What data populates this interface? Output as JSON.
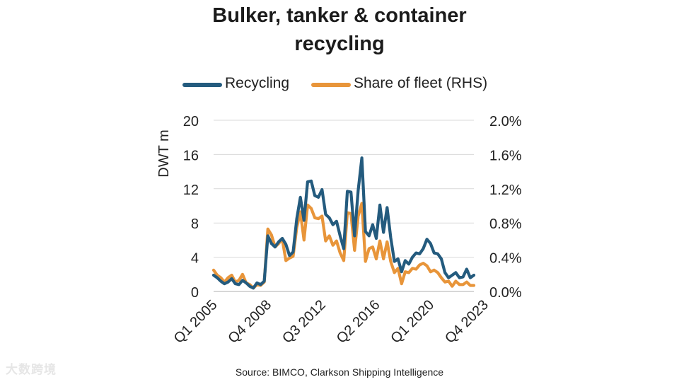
{
  "chart_data": {
    "type": "line",
    "title_lines": [
      "Bulker, tanker & container",
      "recycling"
    ],
    "ylabel": "DWT m",
    "ylim": [
      0,
      20
    ],
    "y_ticks": [
      "0",
      "4",
      "8",
      "12",
      "16",
      "20"
    ],
    "y2lim": [
      0,
      0.02
    ],
    "y2_ticks": [
      "0.0%",
      "0.4%",
      "0.8%",
      "1.2%",
      "1.6%",
      "2.0%"
    ],
    "x_tick_labels": [
      "Q1 2005",
      "Q4 2008",
      "Q3 2012",
      "Q2 2016",
      "Q1 2020",
      "Q4 2023"
    ],
    "x_tick_positions": [
      0,
      15,
      30,
      45,
      60,
      75
    ],
    "legend_position": "top",
    "grid": "horizontal",
    "series": [
      {
        "name": "Recycling",
        "axis": "left",
        "color": "#245b7e",
        "values": [
          1.9,
          1.6,
          1.2,
          0.9,
          1.1,
          1.5,
          0.9,
          0.8,
          1.3,
          1.0,
          0.6,
          0.4,
          1.0,
          0.8,
          1.2,
          6.5,
          5.6,
          5.2,
          5.8,
          6.2,
          5.5,
          4.2,
          4.6,
          8.5,
          11.0,
          8.3,
          12.8,
          12.9,
          11.2,
          11.0,
          11.9,
          9.0,
          8.6,
          7.8,
          8.2,
          6.5,
          5.0,
          11.7,
          11.6,
          6.5,
          11.8,
          15.6,
          7.0,
          6.5,
          7.8,
          6.2,
          10.1,
          6.9,
          9.8,
          6.3,
          3.5,
          3.8,
          2.3,
          3.6,
          3.2,
          4.0,
          4.5,
          4.4,
          5.0,
          6.1,
          5.6,
          4.5,
          4.4,
          3.8,
          2.2,
          1.6,
          1.9,
          2.2,
          1.6,
          1.7,
          2.6,
          1.6,
          1.9
        ]
      },
      {
        "name": "Share of fleet (RHS)",
        "axis": "right",
        "color": "#e8953a",
        "values": [
          0.0025,
          0.0019,
          0.0016,
          0.0011,
          0.0016,
          0.0019,
          0.0011,
          0.0013,
          0.002,
          0.001,
          0.0008,
          0.0004,
          0.0008,
          0.0007,
          0.0011,
          0.0073,
          0.0066,
          0.0052,
          0.0056,
          0.0061,
          0.0036,
          0.0039,
          0.0041,
          0.0075,
          0.0093,
          0.006,
          0.0101,
          0.0097,
          0.0086,
          0.0085,
          0.0088,
          0.0059,
          0.0065,
          0.0054,
          0.0059,
          0.0045,
          0.0036,
          0.0092,
          0.0091,
          0.0048,
          0.0088,
          0.0103,
          0.0035,
          0.005,
          0.0052,
          0.0038,
          0.0059,
          0.0038,
          0.0058,
          0.0035,
          0.0022,
          0.0027,
          0.0009,
          0.0023,
          0.0022,
          0.0027,
          0.0026,
          0.0031,
          0.0033,
          0.003,
          0.0023,
          0.0025,
          0.0022,
          0.0016,
          0.0011,
          0.0012,
          0.0006,
          0.0012,
          0.0008,
          0.0008,
          0.0011,
          0.0007,
          0.0007
        ]
      }
    ]
  },
  "source": "Source: BIMCO, Clarkson Shipping Intelligence",
  "watermark": "大数跨境"
}
